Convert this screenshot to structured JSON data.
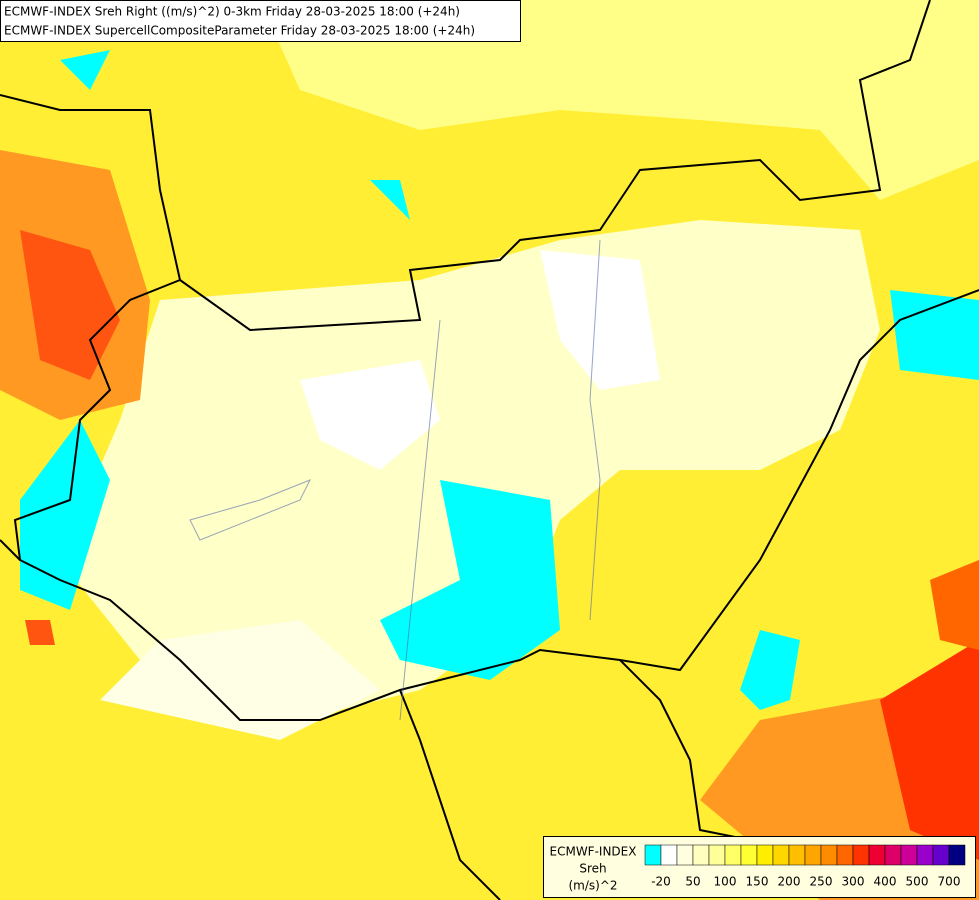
{
  "header": {
    "lines": [
      "ECMWF-INDEX Sreh Right ((m/s)^2) 0-3km Friday 28-03-2025 18:00 (+24h)",
      "ECMWF-INDEX SupercellCompositeParameter Friday 28-03-2025 18:00 (+24h)"
    ]
  },
  "legend": {
    "title": "ECMWF-INDEX",
    "name": "Sreh",
    "unit": "(m/s)^2",
    "labels": [
      "-20",
      "50",
      "100",
      "150",
      "200",
      "250",
      "300",
      "400",
      "500",
      "700"
    ],
    "colors": [
      "#00ffff",
      "#ffffff",
      "#ffffe0",
      "#ffffc0",
      "#ffff99",
      "#ffff66",
      "#ffff33",
      "#ffee00",
      "#ffd700",
      "#ffbf00",
      "#ffa500",
      "#ff8c00",
      "#ff6600",
      "#ff3300",
      "#ee0033",
      "#dd0066",
      "#cc0099",
      "#9900cc",
      "#6600cc",
      "#000080"
    ]
  }
}
